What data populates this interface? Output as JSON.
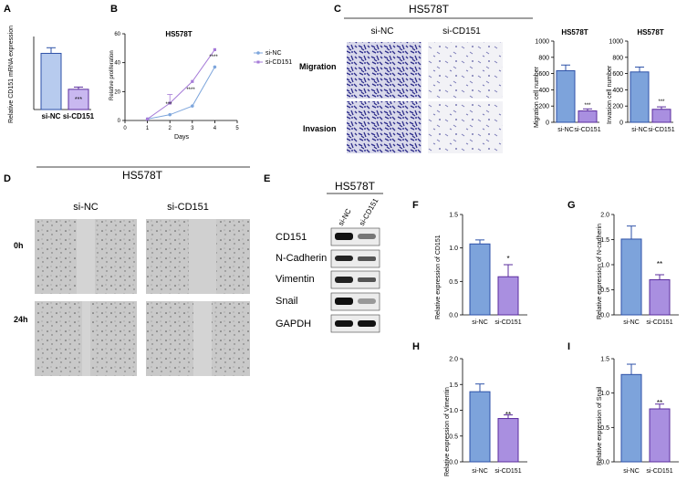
{
  "panel_labels": {
    "A": "A",
    "B": "B",
    "C": "C",
    "D": "D",
    "E": "E",
    "F": "F",
    "G": "G",
    "H": "H",
    "I": "I"
  },
  "colors": {
    "blue_bar": "#7da3db",
    "blue_edge": "#2e52a8",
    "purple_bar": "#a98fe0",
    "purple_edge": "#5b2d9e",
    "lavender_bar": "#c9b8f0",
    "si_nc_line": "#7ea6dc",
    "si_cd151_line": "#a67bd8",
    "stain": "#5a5aa8"
  },
  "panelA": {
    "ylabel": "Relative CD151 mRNA expression",
    "stars": "***"
  },
  "panelB": {
    "title": "HS578T",
    "xlabel": "Days",
    "ylabel": "Relative proliferation",
    "stars": [
      "***",
      "****",
      "****"
    ]
  },
  "panelC": {
    "title": "HS578T",
    "col_labels": [
      "si-NC",
      "si-CD151"
    ],
    "row_labels": [
      "Migration",
      "Invasion"
    ],
    "chart1": {
      "title": "HS578T",
      "ylabel": "Migration cell number",
      "stars": "***"
    },
    "chart2": {
      "title": "HS578T",
      "ylabel": "Invasion cell number",
      "stars": "***"
    }
  },
  "panelD": {
    "title": "HS578T",
    "col_labels": [
      "si-NC",
      "si-CD151"
    ],
    "row_labels": [
      "0h",
      "24h"
    ]
  },
  "panelE": {
    "title": "HS578T",
    "lanes": [
      "si-NC",
      "si-CD151"
    ],
    "proteins": [
      "CD151",
      "N-Cadherin",
      "Vimentin",
      "Snail",
      "GAPDH"
    ]
  },
  "panelF": {
    "ylabel": "Relative expression of CD151",
    "stars": "*"
  },
  "panelG": {
    "ylabel": "Relative expression of N-cadherin",
    "stars": "**"
  },
  "panelH": {
    "ylabel": "Relative expression of Vimentin",
    "stars": "**"
  },
  "panelI": {
    "ylabel": "Relative expression of Snail",
    "stars": "**"
  },
  "chart_data": [
    {
      "id": "A",
      "type": "bar",
      "categories": [
        "si-NC",
        "si-CD151"
      ],
      "values": [
        1.0,
        0.36
      ],
      "errors": [
        0.1,
        0.04
      ],
      "ylabel": "Relative CD151 mRNA expression",
      "ylim": [
        0,
        1.3
      ],
      "yticks": []
    },
    {
      "id": "B",
      "type": "line",
      "title": "HS578T",
      "xlabel": "Days",
      "ylabel": "Relative proliferation",
      "xlim": [
        0,
        5
      ],
      "ylim": [
        0,
        60
      ],
      "xticks": [
        0,
        1,
        2,
        3,
        4,
        5
      ],
      "yticks": [
        0,
        20,
        40,
        60
      ],
      "series": [
        {
          "name": "si-NC",
          "x": [
            1,
            2,
            3,
            4
          ],
          "y": [
            1,
            4,
            10,
            37
          ],
          "err": [
            0,
            0,
            0,
            0
          ]
        },
        {
          "name": "si-CD151",
          "x": [
            1,
            2,
            3,
            4
          ],
          "y": [
            1,
            12,
            27,
            49
          ],
          "err": [
            0,
            6,
            0,
            0
          ]
        }
      ]
    },
    {
      "id": "C1",
      "type": "bar",
      "title": "HS578T",
      "categories": [
        "si-NC",
        "si-CD151"
      ],
      "values": [
        635,
        140
      ],
      "errors": [
        70,
        25
      ],
      "ylabel": "Migration cell number",
      "ylim": [
        0,
        1000
      ],
      "yticks": [
        0,
        200,
        400,
        600,
        800,
        1000
      ]
    },
    {
      "id": "C2",
      "type": "bar",
      "title": "HS578T",
      "categories": [
        "si-NC",
        "si-CD151"
      ],
      "values": [
        620,
        160
      ],
      "errors": [
        60,
        30
      ],
      "ylabel": "Invasion cell number",
      "ylim": [
        0,
        1000
      ],
      "yticks": [
        0,
        200,
        400,
        600,
        800,
        1000
      ]
    },
    {
      "id": "F",
      "type": "bar",
      "categories": [
        "si-NC",
        "si-CD151"
      ],
      "values": [
        1.06,
        0.57
      ],
      "errors": [
        0.06,
        0.18
      ],
      "ylabel": "Relative expression of CD151",
      "ylim": [
        0,
        1.5
      ],
      "yticks": [
        0,
        0.5,
        1.0,
        1.5
      ],
      "ytick_labels": [
        "0.0",
        "0.5",
        "1.0",
        "1.5"
      ]
    },
    {
      "id": "G",
      "type": "bar",
      "categories": [
        "si-NC",
        "si-CD151"
      ],
      "values": [
        1.51,
        0.7
      ],
      "errors": [
        0.26,
        0.1
      ],
      "ylabel": "Relative expression of N-cadherin",
      "ylim": [
        0,
        2.0
      ],
      "yticks": [
        0,
        0.5,
        1.0,
        1.5,
        2.0
      ],
      "ytick_labels": [
        "0.0",
        "0.5",
        "1.0",
        "1.5",
        "2.0"
      ]
    },
    {
      "id": "H",
      "type": "bar",
      "categories": [
        "si-NC",
        "si-CD151"
      ],
      "values": [
        1.36,
        0.84
      ],
      "errors": [
        0.15,
        0.07
      ],
      "ylabel": "Relative expression of Vimentin",
      "ylim": [
        0,
        2.0
      ],
      "yticks": [
        0,
        0.5,
        1.0,
        1.5,
        2.0
      ],
      "ytick_labels": [
        "0.0",
        "0.5",
        "1.0",
        "1.5",
        "2.0"
      ]
    },
    {
      "id": "I",
      "type": "bar",
      "categories": [
        "si-NC",
        "si-CD151"
      ],
      "values": [
        1.27,
        0.77
      ],
      "errors": [
        0.15,
        0.07
      ],
      "ylabel": "Relative expression of Snail",
      "ylim": [
        0,
        1.5
      ],
      "yticks": [
        0,
        0.5,
        1.0,
        1.5
      ],
      "ytick_labels": [
        "0.0",
        "0.5",
        "1.0",
        "1.5"
      ]
    }
  ]
}
